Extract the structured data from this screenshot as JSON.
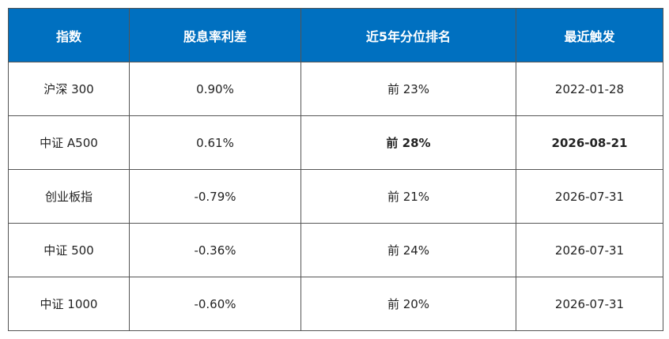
{
  "table": {
    "header": [
      "指数",
      "股息率利差",
      "近5年分位排名",
      "最近触发"
    ],
    "rows": [
      [
        "沪深 300",
        "0.90%",
        "前 23%",
        "2022-01-28"
      ],
      [
        "中证 A500",
        "0.61%",
        "前 28%",
        "2026-08-21"
      ],
      [
        "创业板指",
        "-0.79%",
        "前 21%",
        "2026-07-31"
      ],
      [
        "中证 500",
        "-0.36%",
        "前 24%",
        "2026-07-31"
      ],
      [
        "中证 1000",
        "-0.60%",
        "前 20%",
        "2026-07-31"
      ]
    ]
  }
}
